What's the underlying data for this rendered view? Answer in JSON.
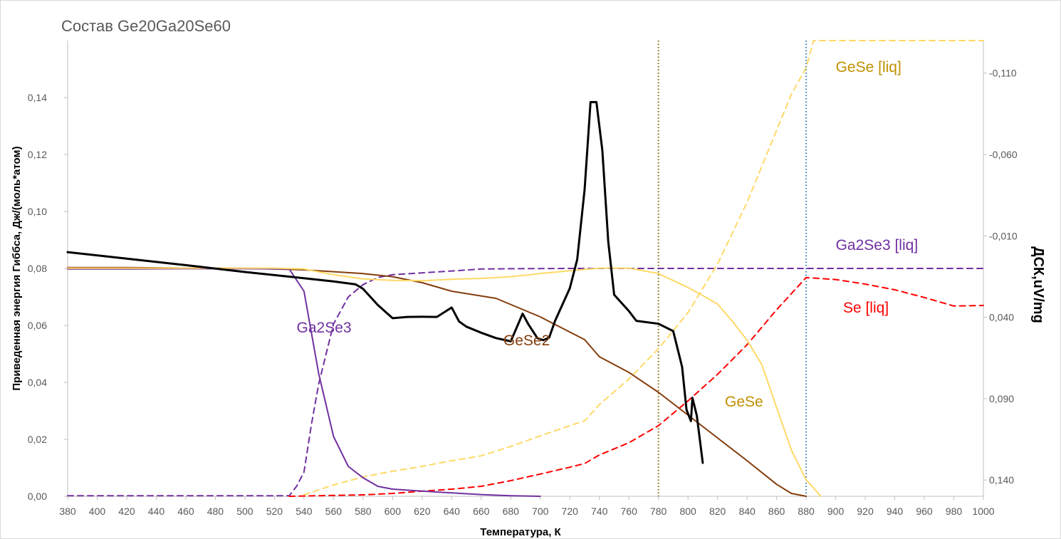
{
  "chart_data": {
    "type": "line",
    "title": "Состав Ge20Ga20Se60",
    "xlabel": "Температура, К",
    "ylabel": "Приведенная энергия Гиббса, Дж/(моль*атом)",
    "y2label": "ДСК,uV/mg",
    "xlim": [
      380,
      1000
    ],
    "ylim": [
      0,
      0.16
    ],
    "y2lim": [
      -0.13,
      0.15
    ],
    "y2_reversed": true,
    "x_ticks": [
      "380",
      "400",
      "420",
      "440",
      "460",
      "480",
      "500",
      "520",
      "540",
      "560",
      "580",
      "600",
      "620",
      "640",
      "660",
      "680",
      "700",
      "720",
      "740",
      "760",
      "780",
      "800",
      "820",
      "840",
      "860",
      "880",
      "900",
      "920",
      "940",
      "960",
      "980",
      "1000"
    ],
    "y_ticks": [
      "0,00",
      "0,02",
      "0,04",
      "0,06",
      "0,08",
      "0,10",
      "0,12",
      "0,14"
    ],
    "y2_ticks": [
      "-0,110",
      "-0,060",
      "-0,010",
      "0,040",
      "0,090",
      "0,140"
    ],
    "grid": false,
    "legend": "none",
    "vlines": [
      {
        "x": 780,
        "color": "#7f6000"
      },
      {
        "x": 880,
        "color": "#2e75b6"
      }
    ],
    "series": [
      {
        "name": "GeSe2",
        "axis": "y",
        "color": "#843c0c",
        "dash": "solid",
        "points": [
          [
            380,
            0.0803
          ],
          [
            420,
            0.0803
          ],
          [
            460,
            0.0801
          ],
          [
            500,
            0.0801
          ],
          [
            540,
            0.0795
          ],
          [
            580,
            0.0782
          ],
          [
            600,
            0.0771
          ],
          [
            620,
            0.075
          ],
          [
            640,
            0.072
          ],
          [
            670,
            0.0695
          ],
          [
            700,
            0.063
          ],
          [
            730,
            0.055
          ],
          [
            740,
            0.049
          ],
          [
            760,
            0.0435
          ],
          [
            780,
            0.0365
          ],
          [
            800,
            0.0285
          ],
          [
            820,
            0.0205
          ],
          [
            840,
            0.0125
          ],
          [
            860,
            0.0042
          ],
          [
            870,
            0.001
          ],
          [
            880,
            0.0
          ]
        ]
      },
      {
        "name": "Ga2Se3",
        "axis": "y",
        "color": "#7030a0",
        "dash": "solid",
        "points": [
          [
            380,
            0.0798
          ],
          [
            420,
            0.0798
          ],
          [
            460,
            0.0799
          ],
          [
            500,
            0.0799
          ],
          [
            530,
            0.0798
          ],
          [
            540,
            0.072
          ],
          [
            550,
            0.043
          ],
          [
            560,
            0.021
          ],
          [
            570,
            0.0105
          ],
          [
            580,
            0.0065
          ],
          [
            590,
            0.0035
          ],
          [
            600,
            0.0025
          ],
          [
            620,
            0.0018
          ],
          [
            640,
            0.0012
          ],
          [
            660,
            0.0006
          ],
          [
            680,
            0.0002
          ],
          [
            700,
            0.0
          ]
        ]
      },
      {
        "name": "GeSe",
        "axis": "y",
        "color": "#ffd966",
        "dash": "solid",
        "points": [
          [
            380,
            0.0801
          ],
          [
            460,
            0.0801
          ],
          [
            520,
            0.0801
          ],
          [
            540,
            0.0798
          ],
          [
            560,
            0.0778
          ],
          [
            580,
            0.0763
          ],
          [
            600,
            0.0758
          ],
          [
            620,
            0.0757
          ],
          [
            640,
            0.0762
          ],
          [
            660,
            0.0765
          ],
          [
            680,
            0.0771
          ],
          [
            700,
            0.0782
          ],
          [
            720,
            0.0792
          ],
          [
            740,
            0.0801
          ],
          [
            760,
            0.0801
          ],
          [
            780,
            0.0782
          ],
          [
            800,
            0.0733
          ],
          [
            810,
            0.0705
          ],
          [
            820,
            0.0675
          ],
          [
            830,
            0.0615
          ],
          [
            840,
            0.0548
          ],
          [
            850,
            0.0462
          ],
          [
            860,
            0.0312
          ],
          [
            870,
            0.0162
          ],
          [
            880,
            0.0058
          ],
          [
            890,
            0.0
          ]
        ]
      },
      {
        "name": "Ga2Se3 [liq]",
        "axis": "y",
        "color": "#7030a0",
        "dash": "dashed",
        "points": [
          [
            380,
            0.0002
          ],
          [
            530,
            0.0002
          ],
          [
            535,
            0.0035
          ],
          [
            540,
            0.0085
          ],
          [
            545,
            0.025
          ],
          [
            550,
            0.0395
          ],
          [
            560,
            0.0605
          ],
          [
            570,
            0.07
          ],
          [
            580,
            0.0743
          ],
          [
            590,
            0.0768
          ],
          [
            600,
            0.0778
          ],
          [
            640,
            0.0791
          ],
          [
            660,
            0.0798
          ],
          [
            680,
            0.0799
          ],
          [
            720,
            0.08
          ],
          [
            1000,
            0.08
          ]
        ]
      },
      {
        "name": "GeSe [liq]",
        "axis": "y",
        "color": "#ffd966",
        "dash": "dashed",
        "points": [
          [
            540,
            0.0005
          ],
          [
            560,
            0.004
          ],
          [
            580,
            0.0068
          ],
          [
            600,
            0.0088
          ],
          [
            620,
            0.0105
          ],
          [
            640,
            0.0125
          ],
          [
            660,
            0.0142
          ],
          [
            680,
            0.0175
          ],
          [
            700,
            0.0212
          ],
          [
            720,
            0.0248
          ],
          [
            730,
            0.0265
          ],
          [
            740,
            0.0322
          ],
          [
            760,
            0.0412
          ],
          [
            780,
            0.0518
          ],
          [
            800,
            0.0645
          ],
          [
            820,
            0.0815
          ],
          [
            840,
            0.1032
          ],
          [
            860,
            0.1285
          ],
          [
            870,
            0.1412
          ],
          [
            880,
            0.1505
          ],
          [
            885,
            0.16
          ],
          [
            1000,
            0.16
          ]
        ]
      },
      {
        "name": "Se [liq]",
        "axis": "y",
        "color": "#ff0000",
        "dash": "dashed",
        "points": [
          [
            530,
            0.0
          ],
          [
            580,
            0.0005
          ],
          [
            600,
            0.001
          ],
          [
            620,
            0.0018
          ],
          [
            640,
            0.0025
          ],
          [
            660,
            0.0035
          ],
          [
            680,
            0.0055
          ],
          [
            700,
            0.0078
          ],
          [
            720,
            0.0102
          ],
          [
            730,
            0.0115
          ],
          [
            740,
            0.0145
          ],
          [
            760,
            0.0188
          ],
          [
            780,
            0.0248
          ],
          [
            800,
            0.0335
          ],
          [
            820,
            0.0428
          ],
          [
            840,
            0.0532
          ],
          [
            860,
            0.0655
          ],
          [
            880,
            0.0768
          ],
          [
            900,
            0.0761
          ],
          [
            920,
            0.0745
          ],
          [
            940,
            0.0725
          ],
          [
            960,
            0.0698
          ],
          [
            980,
            0.0668
          ],
          [
            1000,
            0.067
          ]
        ]
      },
      {
        "name": "",
        "axis": "y2",
        "color": "#000000",
        "dash": "solid",
        "points": [
          [
            380,
            0.0
          ],
          [
            420,
            0.004
          ],
          [
            460,
            0.008
          ],
          [
            500,
            0.0122
          ],
          [
            540,
            0.016
          ],
          [
            560,
            0.018
          ],
          [
            575,
            0.0198
          ],
          [
            580,
            0.0225
          ],
          [
            590,
            0.0325
          ],
          [
            600,
            0.0406
          ],
          [
            610,
            0.0398
          ],
          [
            620,
            0.0397
          ],
          [
            630,
            0.0398
          ],
          [
            640,
            0.034
          ],
          [
            645,
            0.0426
          ],
          [
            650,
            0.0458
          ],
          [
            660,
            0.0495
          ],
          [
            670,
            0.0528
          ],
          [
            680,
            0.0548
          ],
          [
            685,
            0.0443
          ],
          [
            688,
            0.0378
          ],
          [
            692,
            0.0444
          ],
          [
            698,
            0.0528
          ],
          [
            702,
            0.0541
          ],
          [
            706,
            0.0525
          ],
          [
            710,
            0.0422
          ],
          [
            720,
            0.0222
          ],
          [
            725,
            0.0045
          ],
          [
            730,
            -0.0385
          ],
          [
            734,
            -0.0922
          ],
          [
            738,
            -0.0922
          ],
          [
            742,
            -0.0625
          ],
          [
            746,
            -0.0065
          ],
          [
            750,
            0.0262
          ],
          [
            760,
            0.0362
          ],
          [
            765,
            0.0422
          ],
          [
            780,
            0.044
          ],
          [
            790,
            0.0485
          ],
          [
            796,
            0.0705
          ],
          [
            799,
            0.0968
          ],
          [
            802,
            0.1038
          ],
          [
            803,
            0.0895
          ],
          [
            806,
            0.1005
          ],
          [
            810,
            0.1295
          ]
        ]
      }
    ],
    "series_labels": [
      {
        "text": "Ga2Se3",
        "color": "#7030a0",
        "x": 535,
        "y": 0.0575
      },
      {
        "text": "GeSe2",
        "color": "#843c0c",
        "x": 675,
        "y": 0.053
      },
      {
        "text": "GeSe",
        "color": "#bf9000",
        "x": 825,
        "y": 0.0315
      },
      {
        "text": "GeSe [liq]",
        "color": "#bf9000",
        "x": 900,
        "y": 0.149
      },
      {
        "text": "Ga2Se3 [liq]",
        "color": "#7030a0",
        "x": 900,
        "y": 0.0865
      },
      {
        "text": "Se [liq]",
        "color": "#ff0000",
        "x": 905,
        "y": 0.0645
      }
    ]
  }
}
